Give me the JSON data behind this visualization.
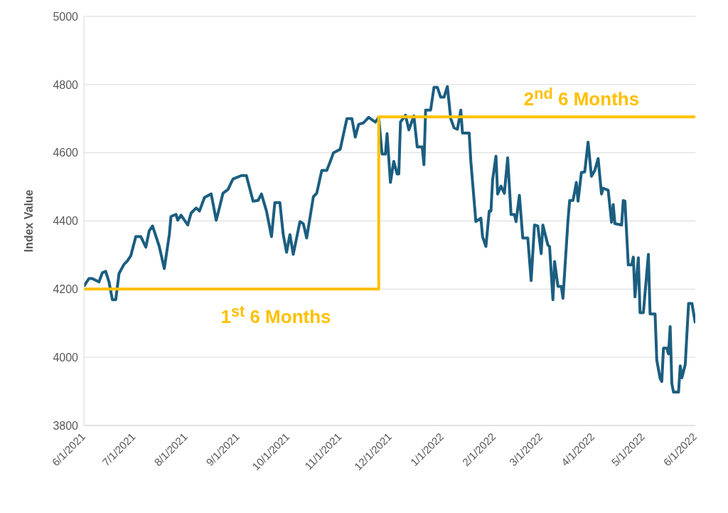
{
  "chart_data": {
    "type": "line",
    "ylabel": "Index Value",
    "grid": "y",
    "marker": "none",
    "line_style": "solid",
    "xlim": [
      "2021-06-01",
      "2022-06-01"
    ],
    "xticks": [
      {
        "value": "2021-06-01",
        "label": "6/1/2021"
      },
      {
        "value": "2021-07-01",
        "label": "7/1/2021"
      },
      {
        "value": "2021-08-01",
        "label": "8/1/2021"
      },
      {
        "value": "2021-09-01",
        "label": "9/1/2021"
      },
      {
        "value": "2021-10-01",
        "label": "10/1/2021"
      },
      {
        "value": "2021-11-01",
        "label": "11/1/2021"
      },
      {
        "value": "2021-12-01",
        "label": "12/1/2021"
      },
      {
        "value": "2022-01-01",
        "label": "1/1/2022"
      },
      {
        "value": "2022-02-01",
        "label": "2/1/2022"
      },
      {
        "value": "2022-03-01",
        "label": "3/1/2022"
      },
      {
        "value": "2022-04-01",
        "label": "4/1/2022"
      },
      {
        "value": "2022-05-01",
        "label": "5/1/2022"
      },
      {
        "value": "2022-06-01",
        "label": "6/1/2022"
      }
    ],
    "ylim": [
      3800,
      5000
    ],
    "yticks": [
      3800,
      4000,
      4200,
      4400,
      4600,
      4800,
      5000
    ],
    "annotations": [
      "1$^{st}$ 6 Months",
      "2$^{nd}$ 6 Months"
    ],
    "series": [
      {
        "type": "line",
        "color": "#1b5e80",
        "x": [
          "2021-06-01",
          "2021-06-04",
          "2021-06-06",
          "2021-06-10",
          "2021-06-12",
          "2021-06-14",
          "2021-06-16",
          "2021-06-18",
          "2021-06-20",
          "2021-06-22",
          "2021-06-25",
          "2021-06-27",
          "2021-06-29",
          "2021-07-02",
          "2021-07-05",
          "2021-07-08",
          "2021-07-10",
          "2021-07-12",
          "2021-07-16",
          "2021-07-19",
          "2021-07-22",
          "2021-07-23",
          "2021-07-26",
          "2021-07-27",
          "2021-07-29",
          "2021-08-02",
          "2021-08-04",
          "2021-08-07",
          "2021-08-09",
          "2021-08-12",
          "2021-08-16",
          "2021-08-19",
          "2021-08-21",
          "2021-08-23",
          "2021-08-26",
          "2021-08-29",
          "2021-09-03",
          "2021-09-06",
          "2021-09-10",
          "2021-09-13",
          "2021-09-15",
          "2021-09-18",
          "2021-09-21",
          "2021-09-23",
          "2021-09-26",
          "2021-09-28",
          "2021-09-30",
          "2021-10-02",
          "2021-10-04",
          "2021-10-08",
          "2021-10-10",
          "2021-10-12",
          "2021-10-16",
          "2021-10-18",
          "2021-10-21",
          "2021-10-24",
          "2021-10-26",
          "2021-10-28",
          "2021-11-01",
          "2021-11-05",
          "2021-11-08",
          "2021-11-10",
          "2021-11-12",
          "2021-11-15",
          "2021-11-18",
          "2021-11-22",
          "2021-11-24",
          "2021-11-26",
          "2021-11-28",
          "2021-11-29",
          "2021-12-01",
          "2021-12-03",
          "2021-12-05",
          "2021-12-06",
          "2021-12-07",
          "2021-12-10",
          "2021-12-12",
          "2021-12-15",
          "2021-12-17",
          "2021-12-20",
          "2021-12-21",
          "2021-12-22",
          "2021-12-25",
          "2021-12-27",
          "2021-12-29",
          "2021-12-31",
          "2022-01-02",
          "2022-01-04",
          "2022-01-06",
          "2022-01-08",
          "2022-01-10",
          "2022-01-12",
          "2022-01-13",
          "2022-01-17",
          "2022-01-18",
          "2022-01-21",
          "2022-01-24",
          "2022-01-25",
          "2022-01-27",
          "2022-01-29",
          "2022-01-30",
          "2022-01-31",
          "2022-02-02",
          "2022-02-03",
          "2022-02-05",
          "2022-02-07",
          "2022-02-09",
          "2022-02-11",
          "2022-02-13",
          "2022-02-14",
          "2022-02-16",
          "2022-02-18",
          "2022-02-21",
          "2022-02-23",
          "2022-02-25",
          "2022-02-27",
          "2022-03-01",
          "2022-03-02",
          "2022-03-05",
          "2022-03-06",
          "2022-03-08",
          "2022-03-09",
          "2022-03-11",
          "2022-03-13",
          "2022-03-14",
          "2022-03-17",
          "2022-03-18",
          "2022-03-20",
          "2022-03-22",
          "2022-03-23",
          "2022-03-25",
          "2022-03-27",
          "2022-03-29",
          "2022-03-31",
          "2022-04-02",
          "2022-04-04",
          "2022-04-06",
          "2022-04-07",
          "2022-04-10",
          "2022-04-12",
          "2022-04-13",
          "2022-04-14",
          "2022-04-18",
          "2022-04-19",
          "2022-04-20",
          "2022-04-22",
          "2022-04-24",
          "2022-04-25",
          "2022-04-26",
          "2022-04-28",
          "2022-04-29",
          "2022-05-01",
          "2022-05-04",
          "2022-05-05",
          "2022-05-08",
          "2022-05-09",
          "2022-05-11",
          "2022-05-12",
          "2022-05-13",
          "2022-05-15",
          "2022-05-16",
          "2022-05-17",
          "2022-05-18",
          "2022-05-19",
          "2022-05-22",
          "2022-05-23",
          "2022-05-24",
          "2022-05-26",
          "2022-05-28",
          "2022-05-30",
          "2022-06-01"
        ],
        "values": [
          4208,
          4231,
          4231,
          4221,
          4248,
          4252,
          4221,
          4169,
          4169,
          4246,
          4273,
          4283,
          4298,
          4354,
          4354,
          4323,
          4371,
          4385,
          4325,
          4260,
          4360,
          4413,
          4419,
          4402,
          4417,
          4388,
          4423,
          4438,
          4429,
          4469,
          4479,
          4402,
          4440,
          4481,
          4492,
          4523,
          4533,
          4533,
          4458,
          4460,
          4479,
          4429,
          4354,
          4454,
          4454,
          4360,
          4308,
          4360,
          4302,
          4398,
          4392,
          4350,
          4471,
          4481,
          4548,
          4548,
          4573,
          4600,
          4610,
          4700,
          4700,
          4646,
          4683,
          4688,
          4704,
          4690,
          4704,
          4596,
          4596,
          4656,
          4513,
          4575,
          4538,
          4538,
          4690,
          4710,
          4667,
          4708,
          4617,
          4617,
          4565,
          4725,
          4725,
          4792,
          4792,
          4763,
          4763,
          4794,
          4700,
          4673,
          4669,
          4725,
          4658,
          4658,
          4575,
          4398,
          4408,
          4354,
          4325,
          4429,
          4429,
          4521,
          4590,
          4479,
          4502,
          4481,
          4585,
          4419,
          4419,
          4398,
          4475,
          4350,
          4350,
          4225,
          4388,
          4385,
          4304,
          4388,
          4329,
          4325,
          4169,
          4281,
          4208,
          4208,
          4173,
          4402,
          4460,
          4460,
          4513,
          4458,
          4542,
          4544,
          4631,
          4531,
          4548,
          4583,
          4479,
          4496,
          4490,
          4396,
          4448,
          4392,
          4388,
          4460,
          4458,
          4271,
          4271,
          4294,
          4177,
          4292,
          4131,
          4131,
          4302,
          4127,
          4127,
          3992,
          3938,
          3929,
          4027,
          4027,
          4010,
          4090,
          3923,
          3898,
          3898,
          3975,
          3940,
          3979,
          4158,
          4158,
          4100
        ]
      },
      {
        "type": "line",
        "color": "#ffc000",
        "x": [
          "2021-06-01",
          "2021-11-24",
          "2021-11-24",
          "2022-06-01"
        ],
        "values": [
          4200,
          4200,
          4705,
          4705
        ]
      }
    ]
  }
}
